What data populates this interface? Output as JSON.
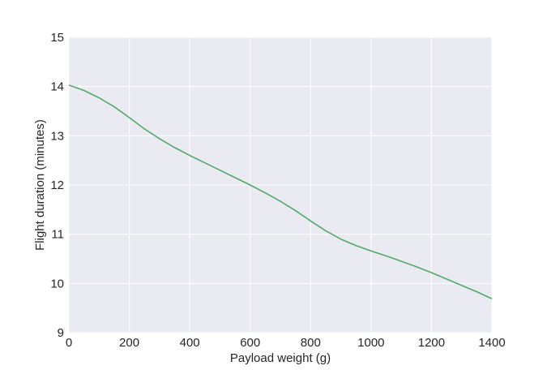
{
  "chart_data": {
    "type": "line",
    "title": "",
    "xlabel": "Payload weight (g)",
    "ylabel": "Flight duration (minutes)",
    "xlim": [
      0,
      1400
    ],
    "ylim": [
      9,
      15
    ],
    "xticks": [
      0,
      200,
      400,
      600,
      800,
      1000,
      1200,
      1400
    ],
    "yticks": [
      9,
      10,
      11,
      12,
      13,
      14,
      15
    ],
    "grid": true,
    "legend": "none",
    "colors": {
      "background": "#eaeaf2",
      "grid": "#ffffff",
      "line": "#55a868"
    },
    "series": [
      {
        "x": [
          0,
          50,
          100,
          150,
          200,
          250,
          300,
          350,
          400,
          450,
          500,
          550,
          600,
          650,
          700,
          750,
          800,
          850,
          900,
          950,
          1000,
          1050,
          1100,
          1150,
          1200,
          1250,
          1300,
          1350,
          1400
        ],
        "y": [
          14.03,
          13.92,
          13.77,
          13.59,
          13.37,
          13.14,
          12.94,
          12.76,
          12.6,
          12.45,
          12.3,
          12.15,
          12.0,
          11.84,
          11.67,
          11.48,
          11.27,
          11.07,
          10.9,
          10.77,
          10.66,
          10.56,
          10.45,
          10.34,
          10.22,
          10.09,
          9.96,
          9.83,
          9.69
        ]
      }
    ]
  }
}
